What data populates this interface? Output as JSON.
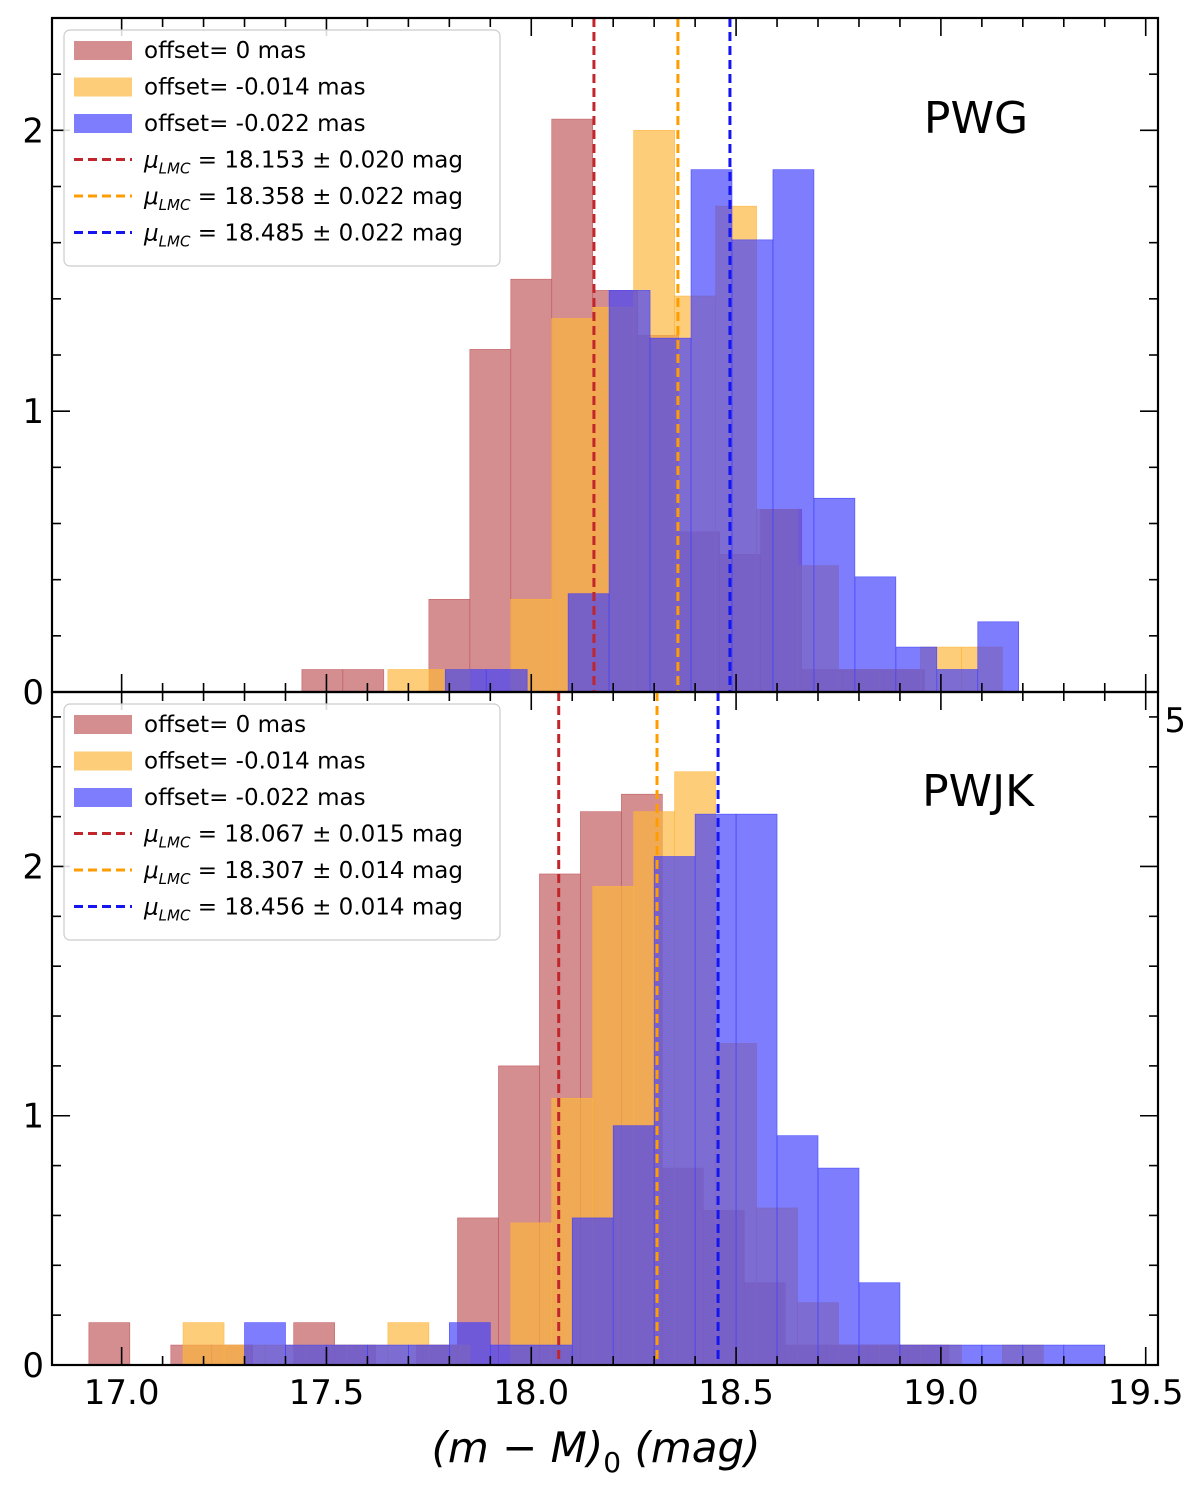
{
  "chart_data": [
    {
      "type": "histogram",
      "panel_label": "PWG",
      "xlabel": "(m − M)₀ (mag)",
      "ylabel": "",
      "xlim": [
        16.83,
        19.53
      ],
      "ylim": [
        0,
        2.4
      ],
      "yticks": [
        0,
        1,
        2
      ],
      "legend_position": "top-left",
      "series": [
        {
          "name": "offset= 0 mas",
          "color": "#c0585c",
          "bins": [
            {
              "x0": 17.44,
              "x1": 17.54,
              "value": 0.08
            },
            {
              "x0": 17.54,
              "x1": 17.64,
              "value": 0.08
            },
            {
              "x0": 17.75,
              "x1": 17.85,
              "value": 0.33
            },
            {
              "x0": 17.85,
              "x1": 17.95,
              "value": 1.22
            },
            {
              "x0": 17.95,
              "x1": 18.05,
              "value": 1.47
            },
            {
              "x0": 18.05,
              "x1": 18.15,
              "value": 2.04
            },
            {
              "x0": 18.15,
              "x1": 18.26,
              "value": 1.43
            },
            {
              "x0": 18.26,
              "x1": 18.36,
              "value": 1.27
            },
            {
              "x0": 18.36,
              "x1": 18.46,
              "value": 0.57
            },
            {
              "x0": 18.46,
              "x1": 18.56,
              "value": 0.49
            },
            {
              "x0": 18.56,
              "x1": 18.66,
              "value": 0.65
            },
            {
              "x0": 18.66,
              "x1": 18.76,
              "value": 0.08
            },
            {
              "x0": 18.76,
              "x1": 18.86,
              "value": 0.08
            },
            {
              "x0": 18.86,
              "x1": 18.96,
              "value": 0.08
            }
          ]
        },
        {
          "name": "offset= -0.014 mas",
          "color": "#fdb53a",
          "bins": [
            {
              "x0": 17.65,
              "x1": 17.75,
              "value": 0.08
            },
            {
              "x0": 17.75,
              "x1": 17.85,
              "value": 0.08
            },
            {
              "x0": 17.95,
              "x1": 18.05,
              "value": 0.33
            },
            {
              "x0": 18.05,
              "x1": 18.15,
              "value": 1.33
            },
            {
              "x0": 18.15,
              "x1": 18.25,
              "value": 1.37
            },
            {
              "x0": 18.25,
              "x1": 18.35,
              "value": 2.0
            },
            {
              "x0": 18.35,
              "x1": 18.45,
              "value": 1.41
            },
            {
              "x0": 18.45,
              "x1": 18.55,
              "value": 1.73
            },
            {
              "x0": 18.55,
              "x1": 18.65,
              "value": 0.65
            },
            {
              "x0": 18.65,
              "x1": 18.75,
              "value": 0.45
            },
            {
              "x0": 18.75,
              "x1": 18.85,
              "value": 0.08
            },
            {
              "x0": 18.85,
              "x1": 18.95,
              "value": 0.08
            },
            {
              "x0": 18.95,
              "x1": 19.05,
              "value": 0.16
            },
            {
              "x0": 19.05,
              "x1": 19.15,
              "value": 0.16
            }
          ]
        },
        {
          "name": "offset= -0.022 mas",
          "color": "#3f3ffc",
          "bins": [
            {
              "x0": 17.79,
              "x1": 17.89,
              "value": 0.08
            },
            {
              "x0": 17.89,
              "x1": 17.99,
              "value": 0.08
            },
            {
              "x0": 18.09,
              "x1": 18.19,
              "value": 0.35
            },
            {
              "x0": 18.19,
              "x1": 18.29,
              "value": 1.43
            },
            {
              "x0": 18.29,
              "x1": 18.39,
              "value": 1.26
            },
            {
              "x0": 18.39,
              "x1": 18.49,
              "value": 1.86
            },
            {
              "x0": 18.49,
              "x1": 18.59,
              "value": 1.61
            },
            {
              "x0": 18.59,
              "x1": 18.69,
              "value": 1.86
            },
            {
              "x0": 18.69,
              "x1": 18.79,
              "value": 0.69
            },
            {
              "x0": 18.79,
              "x1": 18.89,
              "value": 0.41
            },
            {
              "x0": 18.89,
              "x1": 18.99,
              "value": 0.16
            },
            {
              "x0": 18.99,
              "x1": 19.09,
              "value": 0.08
            },
            {
              "x0": 19.09,
              "x1": 19.19,
              "value": 0.25
            }
          ]
        }
      ],
      "vlines": [
        {
          "x": 18.153,
          "color": "#c0262c",
          "label_prefix": "μ",
          "label_sub": "LMC",
          "label_rest": " = 18.153 ± 0.020 mag"
        },
        {
          "x": 18.358,
          "color": "#ff9d00",
          "label_prefix": "μ",
          "label_sub": "LMC",
          "label_rest": " = 18.358 ± 0.022 mag"
        },
        {
          "x": 18.485,
          "color": "#1515f0",
          "label_prefix": "μ",
          "label_sub": "LMC",
          "label_rest": " = 18.485 ± 0.022 mag"
        }
      ]
    },
    {
      "type": "histogram",
      "panel_label": "PWJK",
      "xlabel": "(m − M)₀ (mag)",
      "ylabel": "",
      "xlim": [
        16.83,
        19.53
      ],
      "ylim": [
        0,
        2.7
      ],
      "yticks": [
        0,
        1,
        2
      ],
      "legend_position": "top-left",
      "series": [
        {
          "name": "offset= 0 mas",
          "color": "#c0585c",
          "bins": [
            {
              "x0": 16.92,
              "x1": 17.02,
              "value": 0.17
            },
            {
              "x0": 17.12,
              "x1": 17.22,
              "value": 0.08
            },
            {
              "x0": 17.22,
              "x1": 17.32,
              "value": 0.08
            },
            {
              "x0": 17.42,
              "x1": 17.52,
              "value": 0.17
            },
            {
              "x0": 17.52,
              "x1": 17.62,
              "value": 0.08
            },
            {
              "x0": 17.72,
              "x1": 17.82,
              "value": 0.08
            },
            {
              "x0": 17.82,
              "x1": 17.92,
              "value": 0.59
            },
            {
              "x0": 17.92,
              "x1": 18.02,
              "value": 1.2
            },
            {
              "x0": 18.02,
              "x1": 18.12,
              "value": 1.97
            },
            {
              "x0": 18.12,
              "x1": 18.22,
              "value": 2.22
            },
            {
              "x0": 18.22,
              "x1": 18.32,
              "value": 2.29
            },
            {
              "x0": 18.32,
              "x1": 18.42,
              "value": 0.79
            },
            {
              "x0": 18.42,
              "x1": 18.52,
              "value": 0.62
            },
            {
              "x0": 18.52,
              "x1": 18.62,
              "value": 0.33
            },
            {
              "x0": 18.62,
              "x1": 18.72,
              "value": 0.08
            },
            {
              "x0": 18.72,
              "x1": 18.82,
              "value": 0.08
            },
            {
              "x0": 18.82,
              "x1": 18.92,
              "value": 0.08
            },
            {
              "x0": 18.92,
              "x1": 19.02,
              "value": 0.08
            }
          ]
        },
        {
          "name": "offset= -0.014 mas",
          "color": "#fdb53a",
          "bins": [
            {
              "x0": 17.15,
              "x1": 17.25,
              "value": 0.17
            },
            {
              "x0": 17.25,
              "x1": 17.35,
              "value": 0.08
            },
            {
              "x0": 17.35,
              "x1": 17.45,
              "value": 0.08
            },
            {
              "x0": 17.45,
              "x1": 17.55,
              "value": 0.08
            },
            {
              "x0": 17.55,
              "x1": 17.65,
              "value": 0.08
            },
            {
              "x0": 17.65,
              "x1": 17.75,
              "value": 0.17
            },
            {
              "x0": 17.75,
              "x1": 17.85,
              "value": 0.08
            },
            {
              "x0": 17.95,
              "x1": 18.05,
              "value": 0.57
            },
            {
              "x0": 18.05,
              "x1": 18.15,
              "value": 1.07
            },
            {
              "x0": 18.15,
              "x1": 18.25,
              "value": 1.92
            },
            {
              "x0": 18.25,
              "x1": 18.35,
              "value": 2.22
            },
            {
              "x0": 18.35,
              "x1": 18.45,
              "value": 2.38
            },
            {
              "x0": 18.45,
              "x1": 18.55,
              "value": 1.29
            },
            {
              "x0": 18.55,
              "x1": 18.65,
              "value": 0.63
            },
            {
              "x0": 18.65,
              "x1": 18.75,
              "value": 0.25
            },
            {
              "x0": 18.75,
              "x1": 18.85,
              "value": 0.08
            },
            {
              "x0": 18.85,
              "x1": 18.95,
              "value": 0.08
            },
            {
              "x0": 18.95,
              "x1": 19.05,
              "value": 0.08
            },
            {
              "x0": 19.15,
              "x1": 19.25,
              "value": 0.08
            }
          ]
        },
        {
          "name": "offset= -0.022 mas",
          "color": "#3f3ffc",
          "bins": [
            {
              "x0": 17.3,
              "x1": 17.4,
              "value": 0.17
            },
            {
              "x0": 17.4,
              "x1": 17.5,
              "value": 0.08
            },
            {
              "x0": 17.5,
              "x1": 17.6,
              "value": 0.08
            },
            {
              "x0": 17.6,
              "x1": 17.7,
              "value": 0.08
            },
            {
              "x0": 17.7,
              "x1": 17.8,
              "value": 0.08
            },
            {
              "x0": 17.8,
              "x1": 17.9,
              "value": 0.17
            },
            {
              "x0": 17.9,
              "x1": 18.0,
              "value": 0.08
            },
            {
              "x0": 18.0,
              "x1": 18.1,
              "value": 0.08
            },
            {
              "x0": 18.1,
              "x1": 18.2,
              "value": 0.59
            },
            {
              "x0": 18.2,
              "x1": 18.3,
              "value": 0.96
            },
            {
              "x0": 18.3,
              "x1": 18.4,
              "value": 2.04
            },
            {
              "x0": 18.4,
              "x1": 18.5,
              "value": 2.21
            },
            {
              "x0": 18.5,
              "x1": 18.6,
              "value": 2.21
            },
            {
              "x0": 18.6,
              "x1": 18.7,
              "value": 0.92
            },
            {
              "x0": 18.7,
              "x1": 18.8,
              "value": 0.79
            },
            {
              "x0": 18.8,
              "x1": 18.9,
              "value": 0.33
            },
            {
              "x0": 18.9,
              "x1": 19.0,
              "value": 0.08
            },
            {
              "x0": 19.0,
              "x1": 19.1,
              "value": 0.08
            },
            {
              "x0": 19.1,
              "x1": 19.2,
              "value": 0.08
            },
            {
              "x0": 19.2,
              "x1": 19.3,
              "value": 0.08
            },
            {
              "x0": 19.3,
              "x1": 19.4,
              "value": 0.08
            }
          ]
        }
      ],
      "vlines": [
        {
          "x": 18.067,
          "color": "#c0262c",
          "label_prefix": "μ",
          "label_sub": "LMC",
          "label_rest": " = 18.067 ± 0.015 mag"
        },
        {
          "x": 18.307,
          "color": "#ff9d00",
          "label_prefix": "μ",
          "label_sub": "LMC",
          "label_rest": " = 18.307 ± 0.014 mag"
        },
        {
          "x": 18.456,
          "color": "#1515f0",
          "label_prefix": "μ",
          "label_sub": "LMC",
          "label_rest": " = 18.456 ± 0.014 mag"
        }
      ]
    }
  ],
  "shared_axis": {
    "xticks": [
      "17.0",
      "17.5",
      "18.0",
      "18.5",
      "19.0",
      "19.5"
    ],
    "xtick_values": [
      17.0,
      17.5,
      18.0,
      18.5,
      19.0,
      19.5
    ],
    "stray_label": "5",
    "xlabel_main": "(m − M)",
    "xlabel_sub": "0",
    "xlabel_unit": " (mag)"
  }
}
